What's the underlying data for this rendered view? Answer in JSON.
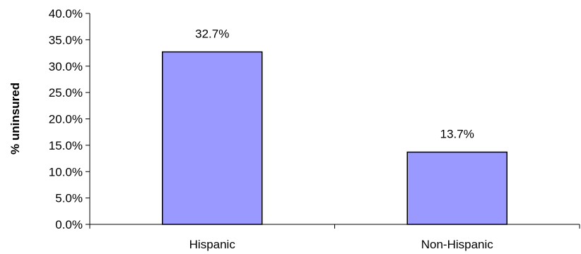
{
  "chart_data": {
    "type": "bar",
    "categories": [
      "Hispanic",
      "Non-Hispanic"
    ],
    "values": [
      32.7,
      13.7
    ],
    "data_labels": [
      "32.7%",
      "13.7%"
    ],
    "title": "",
    "xlabel": "",
    "ylabel": "% uninsured",
    "ylim": [
      0,
      40
    ],
    "yticks": [
      0,
      5,
      10,
      15,
      20,
      25,
      30,
      35,
      40
    ],
    "ytick_labels": [
      "0.0%",
      "5.0%",
      "10.0%",
      "15.0%",
      "20.0%",
      "25.0%",
      "30.0%",
      "35.0%",
      "40.0%"
    ],
    "grid": false,
    "legend": "none",
    "bar_color": "#9999ff",
    "bar_edge_color": "#000000"
  }
}
